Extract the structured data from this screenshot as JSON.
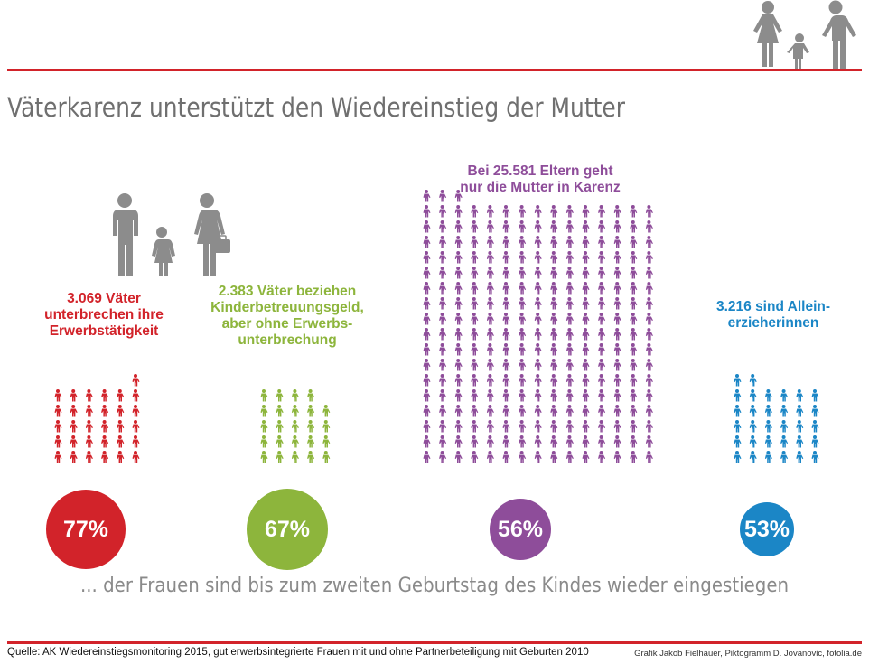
{
  "colors": {
    "rule": "#d2232a",
    "title": "#6f6f6f",
    "icon_gray": "#8c8c8c",
    "red": "#d2232a",
    "green": "#8db53c",
    "purple": "#8e4d9a",
    "blue": "#1b86c6"
  },
  "icons": {
    "header_family": "family-icon",
    "left_family": "father-child-mother-icon",
    "person": "person-icon"
  },
  "title": "Väterkarenz unterstützt den Wiedereinstieg der Mutter",
  "subtitle": "... der Frauen sind bis zum zweiten Geburtstag des Kindes wieder eingestiegen",
  "source": "Quelle: AK Wiedereinstiegsmonitoring 2015, gut erwerbsintegrierte Frauen mit und ohne Partnerbeteiligung mit Geburten 2010",
  "credit": "Grafik Jakob Fielhauer, Piktogramm D. Jovanovic, fotolia.de",
  "chart_data": {
    "type": "pictogram",
    "groups": [
      {
        "label": "3.069 Väter\nunterbrechen ihre\nErwerbstätigkeit",
        "count": 3069,
        "percent": "77%",
        "color": "#d2232a"
      },
      {
        "label": "2.383 Väter beziehen\nKinderbetreuungsgeld,\naber ohne Erwerbs-\nunterbrechung",
        "count": 2383,
        "percent": "67%",
        "color": "#8db53c"
      },
      {
        "label": "Bei 25.581 Eltern geht\nnur die Mutter in Karenz",
        "count": 25581,
        "percent": "56%",
        "color": "#8e4d9a"
      },
      {
        "label": "3.216 sind Allein-\nerzieherinnen",
        "count": 3216,
        "percent": "53%",
        "color": "#1b86c6"
      }
    ]
  }
}
